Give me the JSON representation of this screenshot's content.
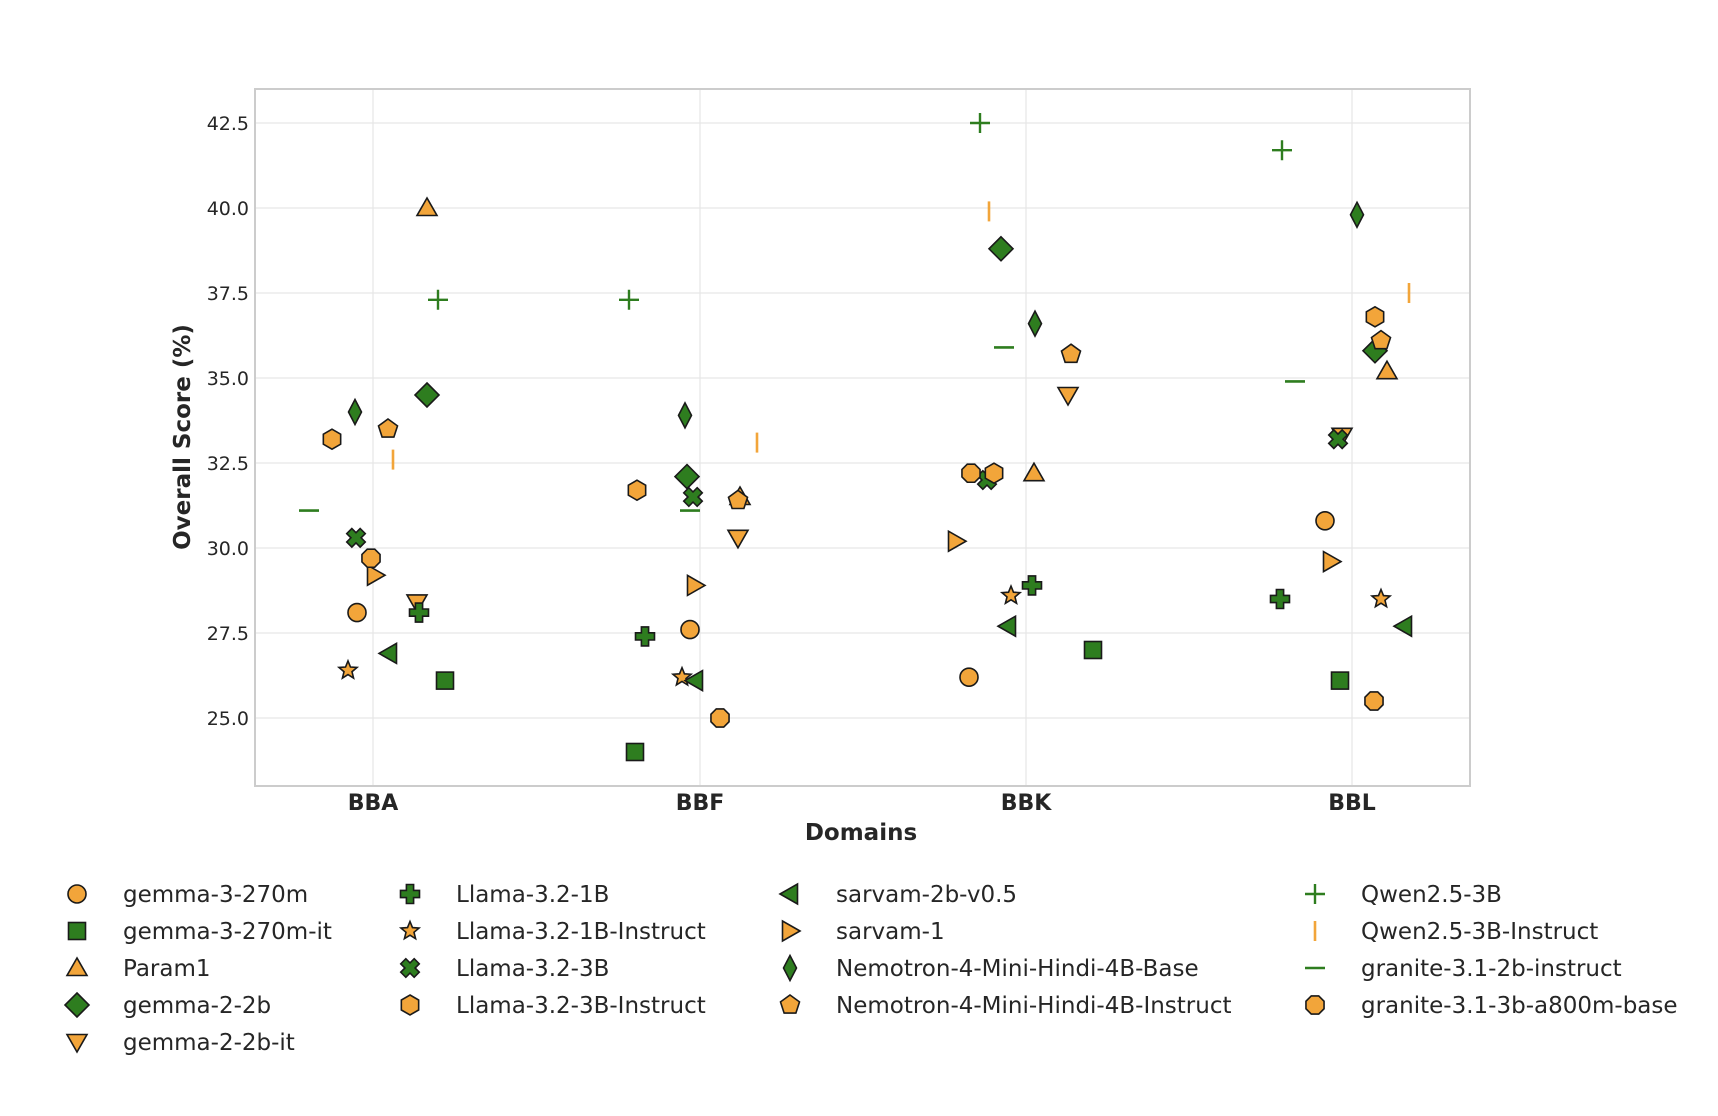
{
  "colors": {
    "orange": "#f2a53a",
    "green": "#2e7d1f",
    "edge": "#1a1a1a",
    "grid": "#e6e6e6",
    "frame": "#cccccc"
  },
  "chart_data": {
    "type": "scatter",
    "title": "",
    "xlabel": "Domains",
    "ylabel": "Overall Score (%)",
    "categories": [
      "BBA",
      "BBF",
      "BBK",
      "BBL"
    ],
    "ylim": [
      23.0,
      43.5
    ],
    "yticks": [
      "25.0",
      "27.5",
      "30.0",
      "32.5",
      "35.0",
      "37.5",
      "40.0",
      "42.5"
    ],
    "grid": true,
    "legend_position": "bottom",
    "series": [
      {
        "name": "gemma-3-270m",
        "marker": "circle",
        "color": "orange",
        "values": [
          28.1,
          27.6,
          26.2,
          30.8
        ]
      },
      {
        "name": "gemma-3-270m-it",
        "marker": "square",
        "color": "green",
        "values": [
          26.1,
          24.0,
          27.0,
          26.1
        ]
      },
      {
        "name": "Param1",
        "marker": "triangle-up",
        "color": "orange",
        "values": [
          40.0,
          31.5,
          32.2,
          35.2
        ]
      },
      {
        "name": "gemma-2-2b",
        "marker": "diamond",
        "color": "green",
        "values": [
          34.5,
          32.1,
          38.8,
          35.8
        ]
      },
      {
        "name": "gemma-2-2b-it",
        "marker": "triangle-down",
        "color": "orange",
        "values": [
          28.4,
          30.3,
          34.5,
          33.3
        ]
      },
      {
        "name": "Llama-3.2-1B",
        "marker": "plus-filled",
        "color": "green",
        "values": [
          28.1,
          27.4,
          28.9,
          28.5
        ]
      },
      {
        "name": "Llama-3.2-1B-Instruct",
        "marker": "star",
        "color": "orange",
        "values": [
          26.4,
          26.2,
          28.6,
          28.5
        ]
      },
      {
        "name": "Llama-3.2-3B",
        "marker": "x-filled",
        "color": "green",
        "values": [
          30.3,
          31.5,
          32.0,
          33.2
        ]
      },
      {
        "name": "Llama-3.2-3B-Instruct",
        "marker": "hexagon",
        "color": "orange",
        "values": [
          33.2,
          31.7,
          32.2,
          36.8
        ]
      },
      {
        "name": "sarvam-2b-v0.5",
        "marker": "triangle-left",
        "color": "green",
        "values": [
          26.9,
          26.1,
          27.7,
          27.7
        ]
      },
      {
        "name": "sarvam-1",
        "marker": "triangle-right",
        "color": "orange",
        "values": [
          29.2,
          28.9,
          30.2,
          29.6
        ]
      },
      {
        "name": "Nemotron-4-Mini-Hindi-4B-Base",
        "marker": "thin-diamond",
        "color": "green",
        "values": [
          34.0,
          33.9,
          36.6,
          39.8
        ]
      },
      {
        "name": "Nemotron-4-Mini-Hindi-4B-Instruct",
        "marker": "pentagon",
        "color": "orange",
        "values": [
          33.5,
          31.4,
          35.7,
          36.1
        ]
      },
      {
        "name": "Qwen2.5-3B",
        "marker": "plus",
        "color": "green",
        "values": [
          37.3,
          37.3,
          42.5,
          41.7
        ]
      },
      {
        "name": "Qwen2.5-3B-Instruct",
        "marker": "vline",
        "color": "orange",
        "values": [
          32.6,
          33.1,
          39.9,
          37.5
        ]
      },
      {
        "name": "granite-3.1-2b-instruct",
        "marker": "hline",
        "color": "green",
        "values": [
          31.1,
          31.1,
          35.9,
          34.9
        ]
      },
      {
        "name": "granite-3.1-3b-a800m-base",
        "marker": "octagon",
        "color": "orange",
        "values": [
          29.7,
          25.0,
          32.2,
          25.5
        ]
      }
    ]
  }
}
